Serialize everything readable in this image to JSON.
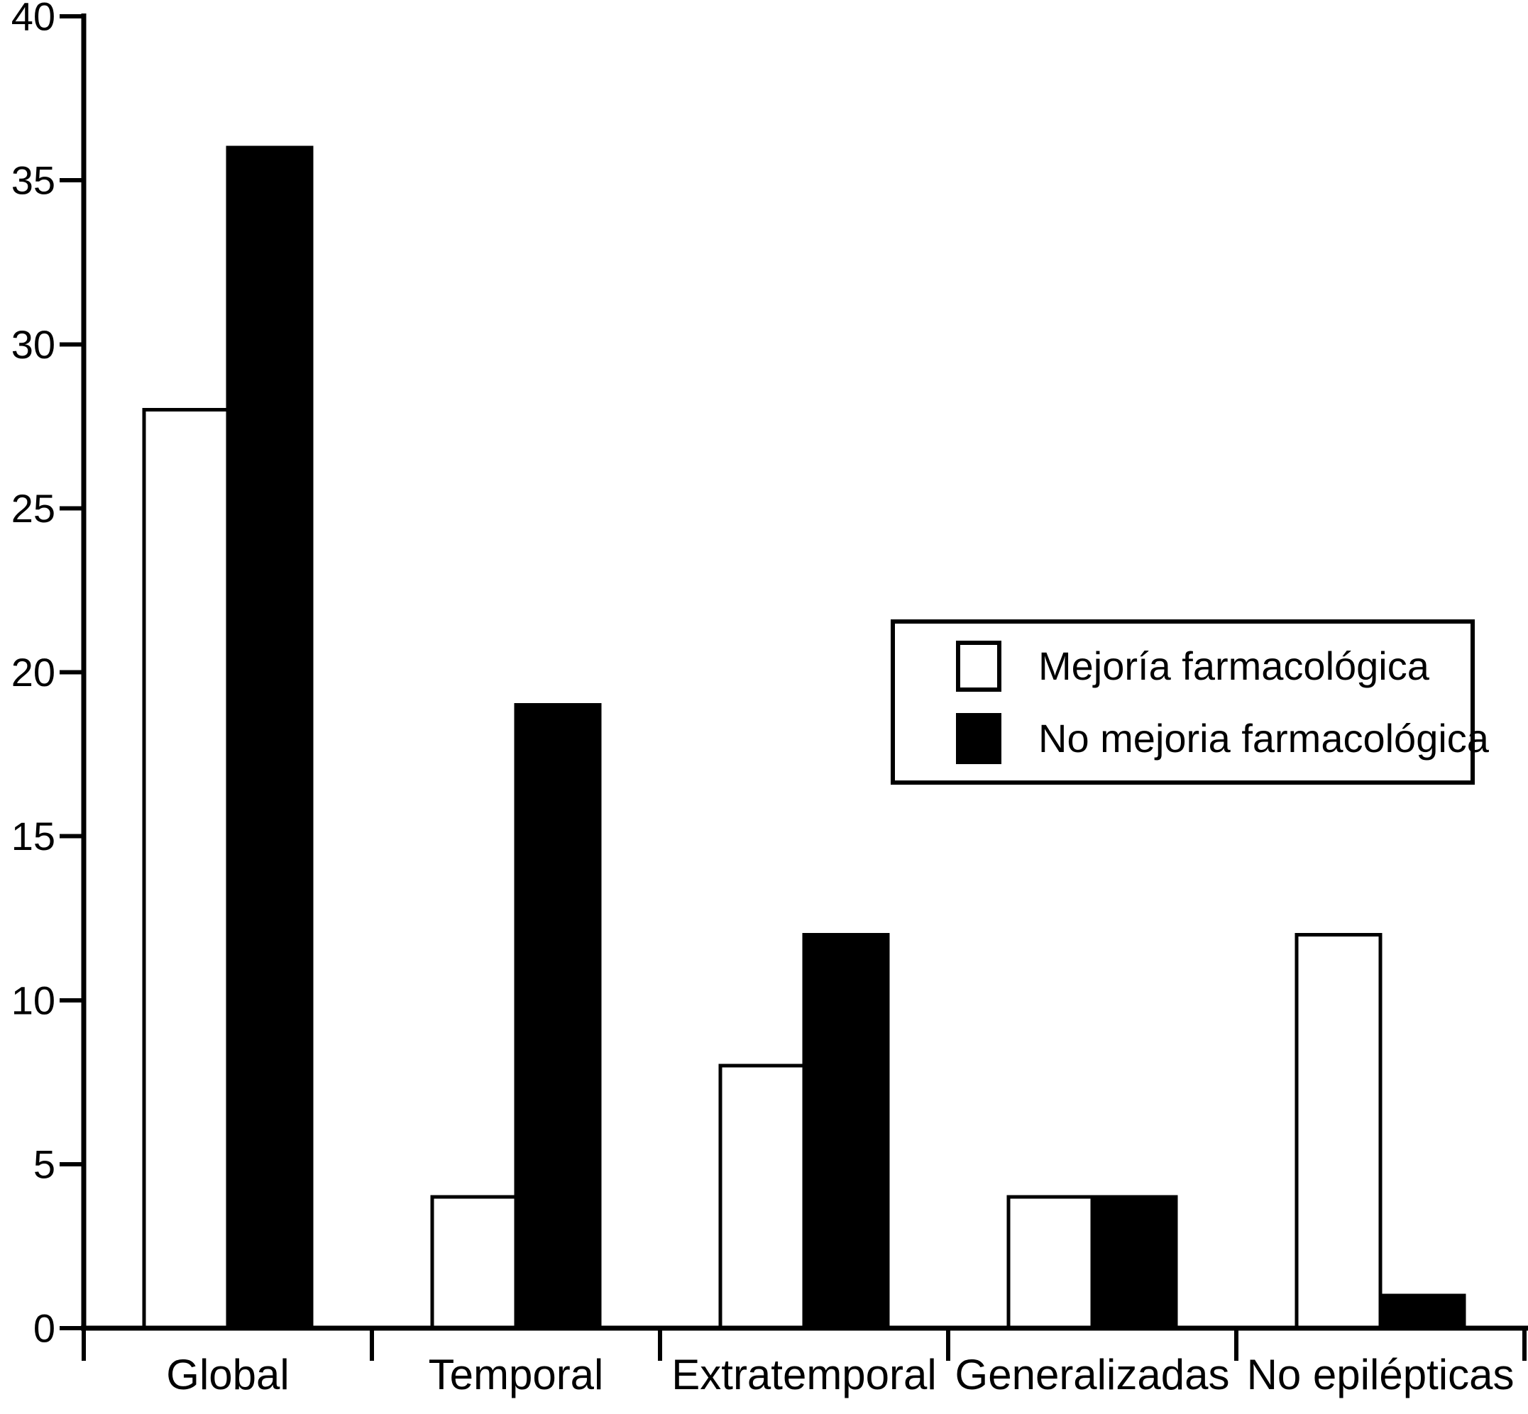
{
  "chart_data": {
    "type": "bar",
    "title": "",
    "xlabel": "",
    "ylabel": "",
    "categories": [
      "Global",
      "Temporal",
      "Extratemporal",
      "Generalizadas",
      "No epilépticas"
    ],
    "series": [
      {
        "name": "Mejoría farmacológica",
        "fill": "#ffffff",
        "values": [
          28,
          4,
          8,
          4,
          12
        ]
      },
      {
        "name": "No mejoria farmacológica",
        "fill": "#000000",
        "values": [
          36,
          19,
          12,
          4,
          1
        ]
      }
    ],
    "ylim": [
      0,
      40
    ],
    "yticks": [
      0,
      5,
      10,
      15,
      20,
      25,
      30,
      35,
      40
    ],
    "grid": false,
    "legend_position": "center-right",
    "axis_color": "#000000",
    "bar_border_color": "#000000",
    "background_color": "#ffffff"
  }
}
